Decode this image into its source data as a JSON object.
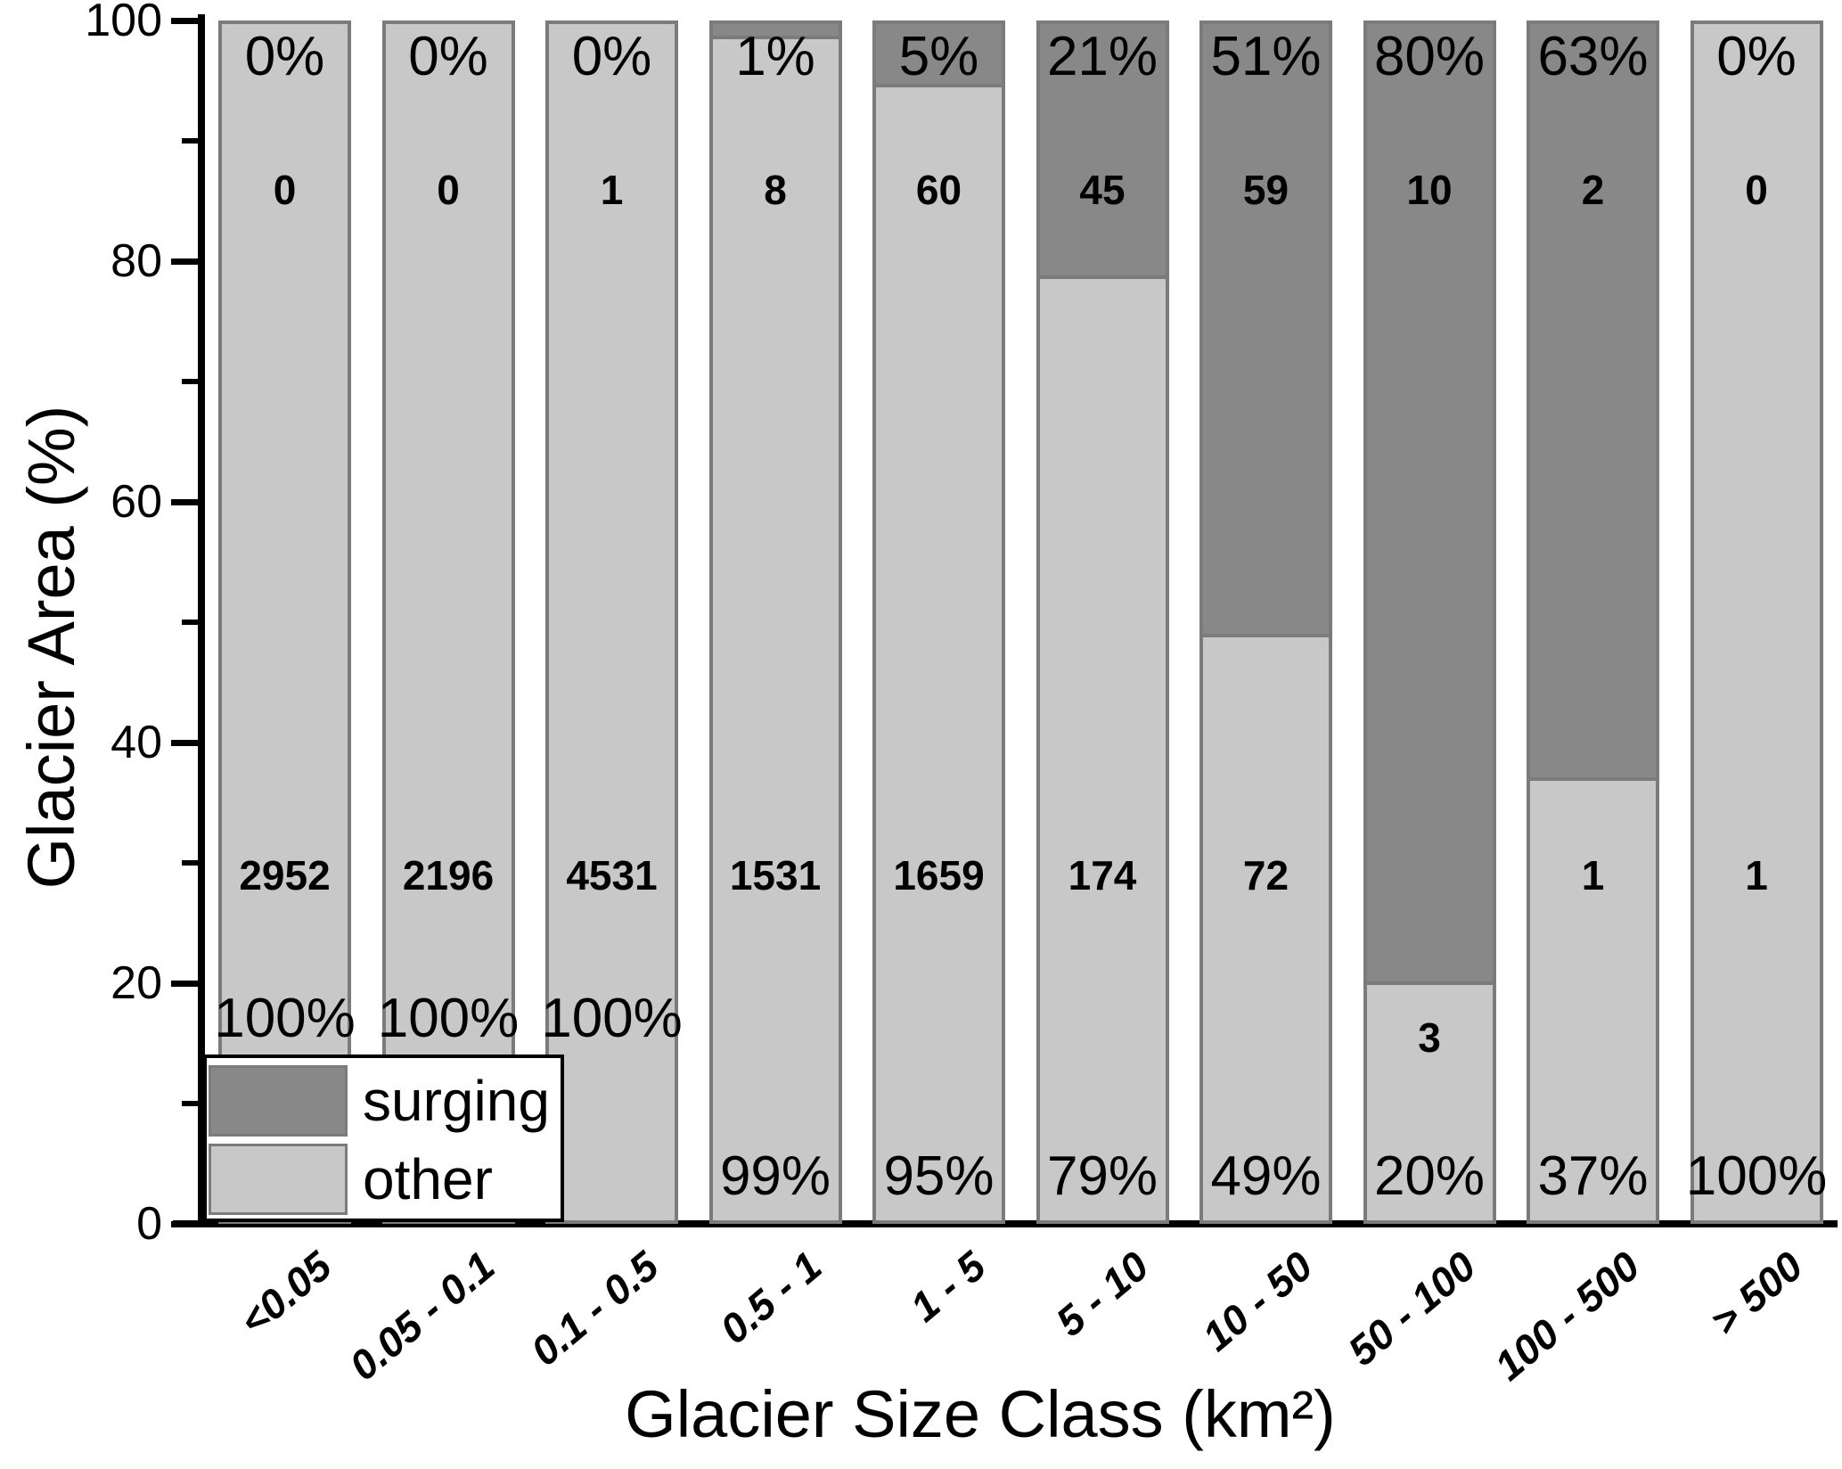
{
  "colors": {
    "surging": "#888888",
    "other": "#c8c8c8",
    "bar_border": "#7b7b7b",
    "axis": "#000000",
    "background": "#ffffff",
    "text": "#000000"
  },
  "chart_data": {
    "type": "bar",
    "stacked": true,
    "title": "",
    "xlabel": "Glacier Size Class (km²)",
    "ylabel": "Glacier Area (%)",
    "ylim": [
      0,
      100
    ],
    "yticks": [
      0,
      20,
      40,
      60,
      80,
      100
    ],
    "ytick_labels": [
      "0",
      "20",
      "40",
      "60",
      "80",
      "100"
    ],
    "yminor": [
      10,
      30,
      50,
      70,
      90
    ],
    "grid": false,
    "categories": [
      "<0.05",
      "0.05 - 0.1",
      "0.1 - 0.5",
      "0.5 - 1",
      "1 - 5",
      "5 - 10",
      "10 - 50",
      "50 - 100",
      "100 - 500",
      "> 500"
    ],
    "series": [
      {
        "name": "surging",
        "color": "#888888",
        "values_pct": [
          0,
          0,
          0,
          1,
          5,
          21,
          51,
          80,
          63,
          0
        ],
        "counts": [
          0,
          0,
          1,
          8,
          60,
          45,
          59,
          10,
          2,
          0
        ]
      },
      {
        "name": "other",
        "color": "#c8c8c8",
        "values_pct": [
          100,
          100,
          100,
          99,
          95,
          79,
          49,
          20,
          37,
          100
        ],
        "counts": [
          2952,
          2196,
          4531,
          1531,
          1659,
          174,
          72,
          3,
          1,
          1
        ]
      }
    ],
    "bar_labels": {
      "top_pct": [
        "0%",
        "0%",
        "0%",
        "1%",
        "5%",
        "21%",
        "51%",
        "80%",
        "63%",
        "0%"
      ],
      "surging_counts": [
        "0",
        "0",
        "1",
        "8",
        "60",
        "45",
        "59",
        "10",
        "2",
        "0"
      ],
      "other_counts": [
        "2952",
        "2196",
        "4531",
        "1531",
        "1659",
        "174",
        "72",
        "3",
        "1",
        "1"
      ],
      "bottom_pct": [
        "100%",
        "100%",
        "100%",
        "99%",
        "95%",
        "79%",
        "49%",
        "20%",
        "37%",
        "100%"
      ]
    },
    "legend": {
      "position": "bottom-left",
      "entries": [
        {
          "label": "surging",
          "color": "#888888"
        },
        {
          "label": "other",
          "color": "#c8c8c8"
        }
      ]
    }
  }
}
